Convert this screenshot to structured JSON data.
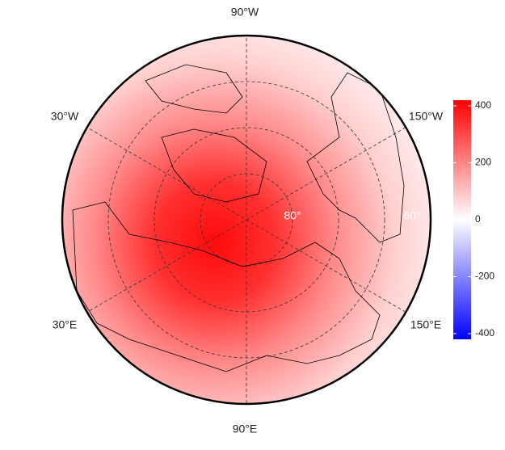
{
  "map": {
    "longitude_labels": [
      "90°W",
      "30°W",
      "150°W",
      "30°E",
      "150°E",
      "90°E"
    ],
    "latitude_labels": [
      "80°",
      "60°"
    ],
    "colorbar": {
      "range": [
        -420,
        420
      ],
      "ticks": [
        400,
        200,
        0,
        -200,
        -400
      ],
      "colors": [
        "#0000ff",
        "#ffffff",
        "#ff0000"
      ]
    }
  }
}
